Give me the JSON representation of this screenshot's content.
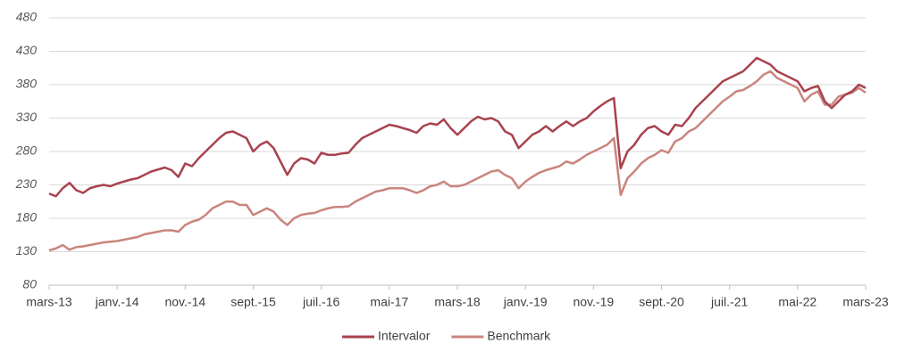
{
  "chart_data": {
    "type": "line",
    "categories": [
      "mars-13",
      null,
      null,
      null,
      null,
      null,
      null,
      null,
      null,
      null,
      "janv.-14",
      null,
      null,
      null,
      null,
      null,
      null,
      null,
      null,
      null,
      "nov.-14",
      null,
      null,
      null,
      null,
      null,
      null,
      null,
      null,
      null,
      "sept.-15",
      null,
      null,
      null,
      null,
      null,
      null,
      null,
      null,
      null,
      "juil.-16",
      null,
      null,
      null,
      null,
      null,
      null,
      null,
      null,
      null,
      "mai-17",
      null,
      null,
      null,
      null,
      null,
      null,
      null,
      null,
      null,
      "mars-18",
      null,
      null,
      null,
      null,
      null,
      null,
      null,
      null,
      null,
      "janv.-19",
      null,
      null,
      null,
      null,
      null,
      null,
      null,
      null,
      null,
      "nov.-19",
      null,
      null,
      null,
      null,
      null,
      null,
      null,
      null,
      null,
      "sept.-20",
      null,
      null,
      null,
      null,
      null,
      null,
      null,
      null,
      null,
      "juil.-21",
      null,
      null,
      null,
      null,
      null,
      null,
      null,
      null,
      null,
      "mai-22",
      null,
      null,
      null,
      null,
      null,
      null,
      null,
      null,
      null,
      "mars-23"
    ],
    "series": [
      {
        "name": "Intervalor",
        "color": "#a8434f",
        "values": [
          217,
          213,
          225,
          233,
          222,
          218,
          225,
          228,
          230,
          228,
          232,
          235,
          238,
          240,
          245,
          250,
          253,
          256,
          252,
          242,
          262,
          258,
          270,
          280,
          290,
          300,
          308,
          310,
          305,
          300,
          280,
          290,
          295,
          285,
          265,
          245,
          262,
          270,
          268,
          262,
          278,
          275,
          275,
          277,
          278,
          290,
          300,
          305,
          310,
          315,
          320,
          318,
          315,
          312,
          308,
          318,
          322,
          320,
          328,
          315,
          305,
          315,
          325,
          332,
          328,
          330,
          325,
          310,
          305,
          285,
          295,
          305,
          310,
          318,
          310,
          318,
          325,
          318,
          325,
          330,
          340,
          348,
          355,
          360,
          255,
          280,
          290,
          305,
          315,
          318,
          310,
          305,
          320,
          318,
          330,
          345,
          355,
          365,
          375,
          385,
          390,
          395,
          400,
          410,
          420,
          415,
          410,
          400,
          395,
          390,
          385,
          370,
          375,
          378,
          355,
          345,
          355,
          365,
          370,
          380,
          375
        ]
      },
      {
        "name": "Benchmark",
        "color": "#c9857e",
        "values": [
          132,
          135,
          140,
          133,
          137,
          138,
          140,
          142,
          144,
          145,
          146,
          148,
          150,
          152,
          156,
          158,
          160,
          162,
          162,
          160,
          170,
          175,
          178,
          185,
          195,
          200,
          205,
          205,
          200,
          200,
          185,
          190,
          195,
          190,
          178,
          170,
          180,
          185,
          187,
          188,
          192,
          195,
          197,
          197,
          198,
          205,
          210,
          215,
          220,
          222,
          225,
          225,
          225,
          222,
          218,
          222,
          228,
          230,
          235,
          228,
          228,
          230,
          235,
          240,
          245,
          250,
          252,
          245,
          240,
          225,
          235,
          242,
          248,
          252,
          255,
          258,
          265,
          262,
          268,
          275,
          280,
          285,
          290,
          300,
          215,
          240,
          250,
          262,
          270,
          275,
          282,
          278,
          295,
          300,
          310,
          315,
          325,
          335,
          345,
          355,
          362,
          370,
          372,
          378,
          385,
          395,
          400,
          390,
          385,
          380,
          375,
          355,
          365,
          370,
          350,
          350,
          362,
          365,
          368,
          375,
          368
        ]
      }
    ],
    "ylim": [
      80,
      480
    ],
    "yticks": [
      80,
      130,
      180,
      230,
      280,
      330,
      380,
      430,
      480
    ],
    "grid": true,
    "legend": "bottom"
  }
}
